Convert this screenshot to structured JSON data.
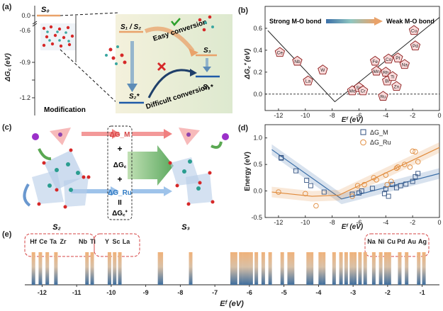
{
  "panels": {
    "a": {
      "label": "(a)",
      "ylabel": "ΔG꜀ (eV)",
      "yticks": [
        "0.0",
        "-0.6",
        "-0.9",
        "-1.2"
      ],
      "states": {
        "s0": "S₀",
        "s12": "S₁ / S₂",
        "s3": "S₃",
        "s2s": "S₂*",
        "s3s": "S₃*"
      },
      "easy": "Easy conversion",
      "difficult": "Difficult conversion",
      "modification": "Modification"
    },
    "b": {
      "label": "(b)",
      "ylabel": "ΔG꜀⁺ (eV)",
      "xlabel": "Eᶠ (eV)",
      "strong": "Strong M-O bond",
      "weak": "Weak M-O bond",
      "xticks": [
        "-12",
        "-10",
        "-8",
        "-6",
        "-4",
        "-2",
        "0"
      ],
      "yticks": [
        "0.0",
        "0.2",
        "0.4",
        "0.6"
      ]
    },
    "c": {
      "label": "(c)",
      "dgm": "ΔG_M",
      "plus1": "+",
      "dgc": "ΔG꜀",
      "plus2": "+",
      "dgru": "ΔG_Ru",
      "eq": "II",
      "dgcp": "ΔG꜀⁺",
      "s2": "S₂",
      "s3": "S₃"
    },
    "d": {
      "label": "(d)",
      "ylabel": "Energy (eV)",
      "xlabel": "Eᶠ (eV)",
      "legend_m": "ΔG_M",
      "legend_ru": "ΔG_Ru",
      "xticks": [
        "-12",
        "-10",
        "-8",
        "-6",
        "-4",
        "-2",
        "0"
      ],
      "yticks": [
        "-0.5",
        "0.0",
        "0.5",
        "1.0"
      ]
    },
    "e": {
      "label": "(e)",
      "xlabel": "Eᶠ (eV)",
      "xticks": [
        "-12",
        "-11",
        "-10",
        "-9",
        "-8",
        "-7",
        "-6",
        "-5",
        "-4",
        "-3",
        "-2",
        "-1"
      ],
      "left_elements": [
        "Hf",
        "Ce",
        "Ta",
        "Zr",
        "Nb",
        "Ti",
        "Y",
        "Sc",
        "La"
      ],
      "right_elements": [
        "Na",
        "Ni",
        "Cu",
        "Pd",
        "Au",
        "Ag"
      ]
    }
  },
  "chart_data": [
    {
      "panel": "b",
      "type": "scatter",
      "xlabel": "Eᶠ (eV)",
      "ylabel": "ΔG꜀⁺ (eV)",
      "xlim": [
        -13,
        0
      ],
      "ylim": [
        -0.15,
        0.8
      ],
      "points": [
        {
          "label": "Ce",
          "x": -11.9,
          "y": 0.38
        },
        {
          "label": "Nb",
          "x": -10.6,
          "y": 0.3
        },
        {
          "label": "La",
          "x": -9.8,
          "y": 0.12
        },
        {
          "label": "W",
          "x": -8.7,
          "y": 0.22
        },
        {
          "label": "Mo",
          "x": -6.5,
          "y": 0.03
        },
        {
          "label": "Sn",
          "x": -6.0,
          "y": 0.06
        },
        {
          "label": "Cr",
          "x": -5.7,
          "y": 0.03
        },
        {
          "label": "Fe",
          "x": -4.8,
          "y": 0.3
        },
        {
          "label": "Mn",
          "x": -4.7,
          "y": 0.21
        },
        {
          "label": "Co",
          "x": -3.8,
          "y": 0.32
        },
        {
          "label": "Rh",
          "x": -4.0,
          "y": 0.2
        },
        {
          "label": "Bi",
          "x": -3.9,
          "y": 0.12
        },
        {
          "label": "Ti",
          "x": -3.5,
          "y": 0.16
        },
        {
          "label": "Zn",
          "x": -3.2,
          "y": 0.07
        },
        {
          "label": "Ru",
          "x": -4.2,
          "y": -0.02
        },
        {
          "label": "Pt",
          "x": -3.1,
          "y": 0.33
        },
        {
          "label": "Na",
          "x": -2.6,
          "y": 0.27
        },
        {
          "label": "Cu",
          "x": -1.9,
          "y": 0.58
        },
        {
          "label": "Pd",
          "x": -1.8,
          "y": 0.44
        }
      ],
      "fit": [
        [
          -12.8,
          0.58
        ],
        [
          -7.8,
          -0.07
        ],
        [
          0,
          0.7
        ]
      ]
    },
    {
      "panel": "d",
      "type": "scatter",
      "xlabel": "Eᶠ (eV)",
      "ylabel": "Energy (eV)",
      "xlim": [
        -13,
        0
      ],
      "ylim": [
        -0.5,
        1.25
      ],
      "series": [
        {
          "name": "ΔG_M",
          "color": "#2f4f7f",
          "points": [
            [
              -11.8,
              0.63
            ],
            [
              -11.8,
              0.62
            ],
            [
              -10.7,
              0.38
            ],
            [
              -9.9,
              0.2
            ],
            [
              -9.6,
              0.1
            ],
            [
              -8.6,
              -0.02
            ],
            [
              -6.5,
              -0.06
            ],
            [
              -6.0,
              -0.04
            ],
            [
              -5.8,
              0.0
            ],
            [
              -5.0,
              0.05
            ],
            [
              -4.1,
              -0.05
            ],
            [
              -4.0,
              0.04
            ],
            [
              -3.8,
              -0.1
            ],
            [
              -3.5,
              0.12
            ],
            [
              -3.2,
              0.06
            ],
            [
              -2.9,
              0.1
            ],
            [
              -2.5,
              0.13
            ],
            [
              -2.0,
              0.18
            ],
            [
              -1.8,
              0.27
            ],
            [
              -1.6,
              0.33
            ]
          ]
        },
        {
          "name": "ΔG_Ru",
          "color": "#e08a3a",
          "points": [
            [
              -12.0,
              -0.02
            ],
            [
              -10.0,
              -0.05
            ],
            [
              -9.2,
              -0.28
            ],
            [
              -6.5,
              -0.1
            ],
            [
              -6.1,
              0.1
            ],
            [
              -5.6,
              0.12
            ],
            [
              -4.9,
              0.25
            ],
            [
              -4.7,
              0.21
            ],
            [
              -4.0,
              0.3
            ],
            [
              -3.9,
              0.12
            ],
            [
              -3.6,
              0.18
            ],
            [
              -3.2,
              0.43
            ],
            [
              -3.1,
              0.45
            ],
            [
              -2.6,
              0.5
            ],
            [
              -2.2,
              0.45
            ],
            [
              -2.0,
              0.75
            ],
            [
              -1.8,
              0.74
            ],
            [
              -1.6,
              0.55
            ]
          ]
        }
      ],
      "fit_m": [
        [
          -12.5,
          0.78
        ],
        [
          -7.3,
          -0.15
        ],
        [
          0,
          0.33
        ]
      ],
      "fit_ru": [
        [
          -12.5,
          -0.02
        ],
        [
          -9.5,
          -0.1
        ],
        [
          -7.5,
          -0.08
        ],
        [
          0,
          0.82
        ]
      ]
    }
  ],
  "colors": {
    "orange": "#e9a26a",
    "blue": "#3b6fa8",
    "navy": "#1f3f6a",
    "teal": "#2a9d8f",
    "red": "#d62828",
    "green": "#5aa852",
    "dashed_red": "#d64545",
    "pent_fill": "#f9dada",
    "pent_stroke": "#8b1a1a"
  }
}
